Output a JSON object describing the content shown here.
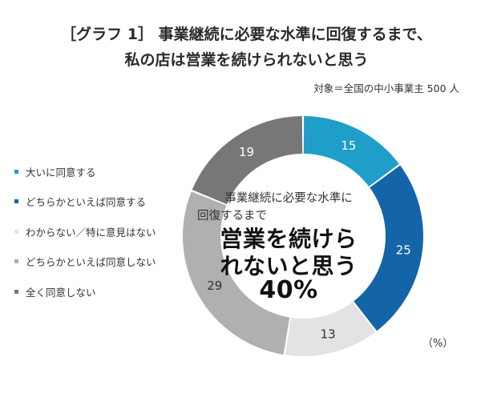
{
  "title_line1": "［グラフ 1］ 事業継続に必要な水準に回復するまで、",
  "title_line2": "私の店は営業を続けられないと思う",
  "note": "対象＝全国の中小事業主 500 人",
  "unit": "（%）",
  "center": {
    "line1": "事業継続に必要な水準に",
    "line2": "回復するまで",
    "line3": "営業を続けら",
    "line4": "れないと思う",
    "line5": "40%"
  },
  "chart_data": {
    "type": "pie",
    "style": "donut",
    "start": "top",
    "direction": "clockwise",
    "categories": [
      "大いに同意する",
      "どちらかといえば同意する",
      "わからない／特に意見はない",
      "どちらかといえば同意しない",
      "全く同意しない"
    ],
    "values": [
      15,
      25,
      13,
      29,
      19
    ],
    "colors": [
      "#1f9ec9",
      "#1464a8",
      "#e3e3e3",
      "#b0b0b0",
      "#777777"
    ],
    "label_colors": [
      "#ffffff",
      "#ffffff",
      "#333333",
      "#333333",
      "#ffffff"
    ],
    "legend_position": "left",
    "unit": "%"
  }
}
